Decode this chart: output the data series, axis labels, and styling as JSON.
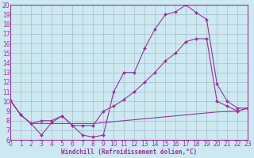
{
  "bg_color": "#cce8f0",
  "line_color": "#993399",
  "grid_color": "#aabbcc",
  "xlabel": "Windchill (Refroidissement éolien,°C)",
  "xlabel_color": "#993399",
  "ylim": [
    6,
    20
  ],
  "xlim": [
    0,
    23
  ],
  "yticks": [
    6,
    7,
    8,
    9,
    10,
    11,
    12,
    13,
    14,
    15,
    16,
    17,
    18,
    19,
    20
  ],
  "xticks": [
    0,
    1,
    2,
    3,
    4,
    5,
    6,
    7,
    8,
    9,
    10,
    11,
    12,
    13,
    14,
    15,
    16,
    17,
    18,
    19,
    20,
    21,
    22,
    23
  ],
  "line1_x": [
    0,
    1,
    2,
    3,
    4,
    5,
    6,
    7,
    8,
    9,
    10,
    11,
    12,
    13,
    14,
    15,
    16,
    17,
    18,
    19,
    20,
    21,
    22,
    23
  ],
  "line1_y": [
    10.1,
    8.6,
    7.7,
    6.5,
    7.8,
    8.5,
    7.5,
    6.5,
    6.3,
    6.5,
    11.0,
    13.0,
    13.0,
    15.5,
    17.5,
    19.0,
    19.3,
    20.0,
    19.2,
    18.5,
    11.8,
    10.0,
    9.3,
    9.3
  ],
  "line2_x": [
    0,
    1,
    2,
    3,
    4,
    5,
    6,
    7,
    8,
    9,
    10,
    11,
    12,
    13,
    14,
    15,
    16,
    17,
    18,
    19,
    20,
    21,
    22,
    23
  ],
  "line2_y": [
    10.1,
    8.6,
    7.7,
    8.0,
    8.0,
    8.5,
    7.5,
    7.5,
    7.5,
    9.0,
    9.5,
    10.2,
    11.0,
    12.0,
    13.0,
    14.2,
    15.0,
    16.2,
    16.5,
    16.5,
    10.0,
    9.5,
    9.0,
    9.3
  ],
  "line3_x": [
    0,
    1,
    2,
    3,
    4,
    5,
    6,
    7,
    8,
    9,
    10,
    11,
    12,
    13,
    14,
    15,
    16,
    17,
    18,
    19,
    20,
    21,
    22,
    23
  ],
  "line3_y": [
    10.1,
    8.6,
    7.7,
    7.7,
    7.7,
    7.7,
    7.7,
    7.7,
    7.7,
    7.8,
    7.9,
    8.0,
    8.1,
    8.2,
    8.3,
    8.4,
    8.5,
    8.6,
    8.7,
    8.8,
    8.9,
    8.95,
    9.0,
    9.3
  ]
}
